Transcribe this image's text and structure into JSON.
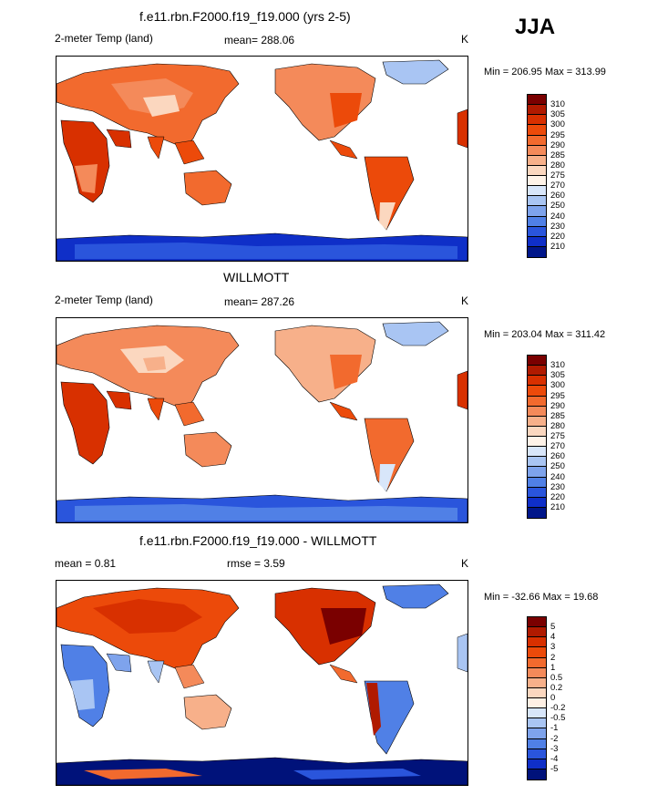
{
  "season_label": "JJA",
  "panels": [
    {
      "title": "f.e11.rbn.F2000.f19_f19.000 (yrs 2-5)",
      "left_label": "2-meter Temp (land)",
      "center_label": "mean= 288.06",
      "units": "K",
      "minmax": "Min = 206.95 Max = 313.99",
      "colorbar_labels": [
        "310",
        "305",
        "300",
        "295",
        "290",
        "285",
        "280",
        "275",
        "270",
        "260",
        "250",
        "240",
        "230",
        "220",
        "210"
      ]
    },
    {
      "title": "WILLMOTT",
      "left_label": "2-meter Temp (land)",
      "center_label": "mean= 287.26",
      "units": "K",
      "minmax": "Min = 203.04 Max = 311.42",
      "colorbar_labels": [
        "310",
        "305",
        "300",
        "295",
        "290",
        "285",
        "280",
        "275",
        "270",
        "260",
        "250",
        "240",
        "230",
        "220",
        "210"
      ]
    },
    {
      "title": "f.e11.rbn.F2000.f19_f19.000 - WILLMOTT",
      "left_label": "mean =   0.81",
      "center_label": "rmse =   3.59",
      "units": "K",
      "minmax": "Min = -32.66 Max =  19.68",
      "colorbar_labels": [
        "5",
        "4",
        "3",
        "2",
        "1",
        "0.5",
        "0.2",
        "0",
        "-0.2",
        "-0.5",
        "-1",
        "-2",
        "-3",
        "-4",
        "-5"
      ]
    }
  ],
  "colors": {
    "temp_scale": [
      "#7a0000",
      "#b01a00",
      "#d83000",
      "#ec4a0a",
      "#f26a2e",
      "#f48a5a",
      "#f7b08a",
      "#fbd7bf",
      "#fff3e8",
      "#d8e6fa",
      "#a9c5f3",
      "#7ea3ec",
      "#5080e6",
      "#2a55dc",
      "#0f2fc8",
      "#00168a"
    ],
    "diff_scale": [
      "#7a0000",
      "#b01a00",
      "#d83000",
      "#ec4a0a",
      "#f26a2e",
      "#f48a5a",
      "#f7b08a",
      "#fbd7bf",
      "#fff0e4",
      "#d8e6fa",
      "#a9c5f3",
      "#7ea3ec",
      "#5080e6",
      "#2a55dc",
      "#0f2fc8",
      "#00127a"
    ]
  }
}
